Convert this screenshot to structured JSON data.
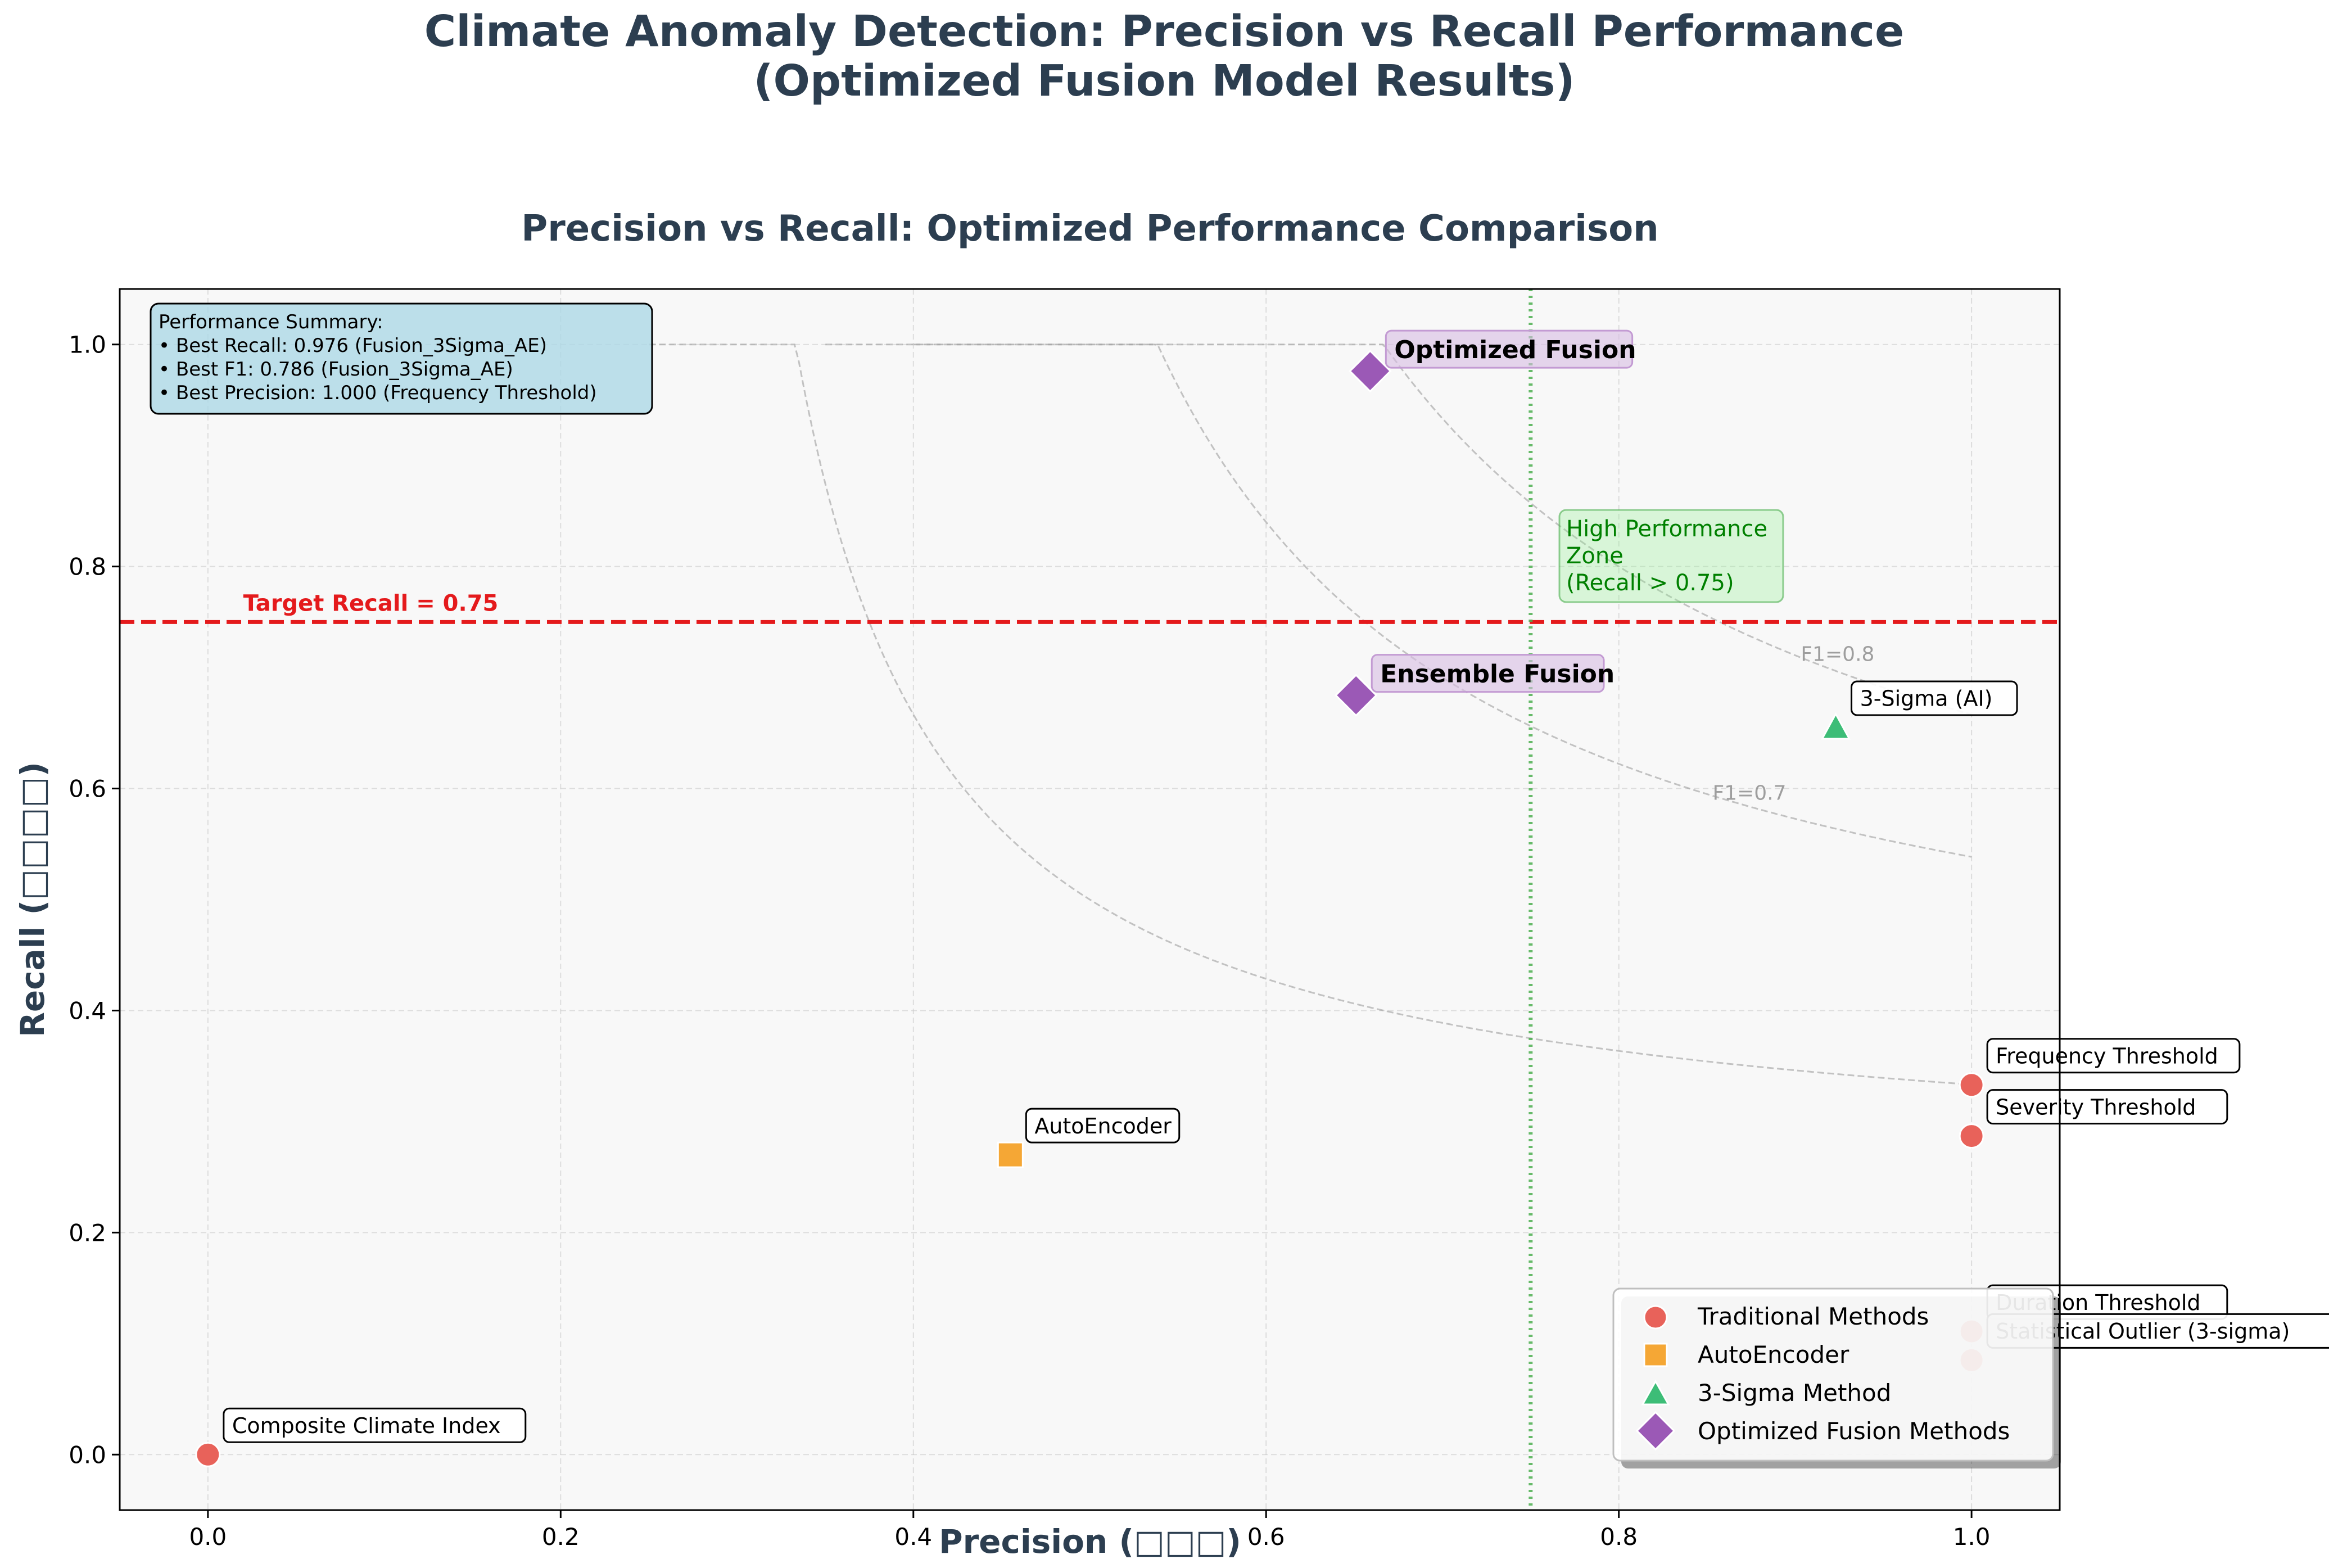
{
  "suptitle_line1": "Climate Anomaly Detection: Precision vs Recall Performance",
  "suptitle_line2": "(Optimized Fusion Model Results)",
  "chart_data": {
    "type": "scatter",
    "title": "Precision vs Recall: Optimized Performance Comparison",
    "xlabel": "Precision (□□□)",
    "ylabel": "Recall (□□□□)",
    "xlim": [
      -0.05,
      1.05
    ],
    "ylim": [
      -0.05,
      1.05
    ],
    "xticks": [
      "0.0",
      "0.2",
      "0.4",
      "0.6",
      "0.8",
      "1.0"
    ],
    "yticks": [
      "0.0",
      "0.2",
      "0.4",
      "0.6",
      "0.8",
      "1.0"
    ],
    "grid": true,
    "legend_position": "lower-right",
    "series": [
      {
        "name": "Traditional Methods",
        "marker": "circle",
        "color": "#e8625a",
        "points": [
          {
            "label": "Frequency Threshold",
            "x": 1.0,
            "y": 0.333
          },
          {
            "label": "Severity Threshold",
            "x": 1.0,
            "y": 0.287
          },
          {
            "label": "Duration Threshold",
            "x": 1.0,
            "y": 0.111
          },
          {
            "label": "Statistical Outlier (3-sigma)",
            "x": 1.0,
            "y": 0.085
          },
          {
            "label": "Composite Climate Index",
            "x": 0.0,
            "y": 0.0
          }
        ]
      },
      {
        "name": "AutoEncoder",
        "marker": "square",
        "color": "#f5a735",
        "points": [
          {
            "label": "AutoEncoder",
            "x": 0.455,
            "y": 0.27
          }
        ]
      },
      {
        "name": "3-Sigma Method",
        "marker": "triangle",
        "color": "#3dbd77",
        "points": [
          {
            "label": "3-Sigma (AI)",
            "x": 0.923,
            "y": 0.655
          }
        ]
      },
      {
        "name": "Optimized Fusion Methods",
        "marker": "diamond",
        "color": "#9b59b6",
        "points": [
          {
            "label": "Optimized Fusion",
            "x": 0.659,
            "y": 0.976
          },
          {
            "label": "Ensemble Fusion",
            "x": 0.651,
            "y": 0.684
          }
        ]
      }
    ],
    "target_line": {
      "value": 0.75,
      "label": "Target Recall = 0.75",
      "color": "#e41a1c"
    },
    "vertical_line": {
      "value": 0.75,
      "color": "#4caf50"
    },
    "f1_contours": [
      {
        "f1": 0.5,
        "label": ""
      },
      {
        "f1": 0.7,
        "label": "F1=0.7"
      },
      {
        "f1": 0.8,
        "label": "F1=0.8"
      }
    ],
    "zone_annotation": {
      "lines": [
        "High Performance",
        "Zone",
        "(Recall > 0.75)"
      ]
    },
    "summary_box": {
      "lines": [
        "Performance Summary:",
        "• Best Recall: 0.976 (Fusion_3Sigma_AE)",
        "• Best F1: 0.786 (Fusion_3Sigma_AE)",
        "• Best Precision: 1.000 (Frequency Threshold)"
      ]
    }
  }
}
